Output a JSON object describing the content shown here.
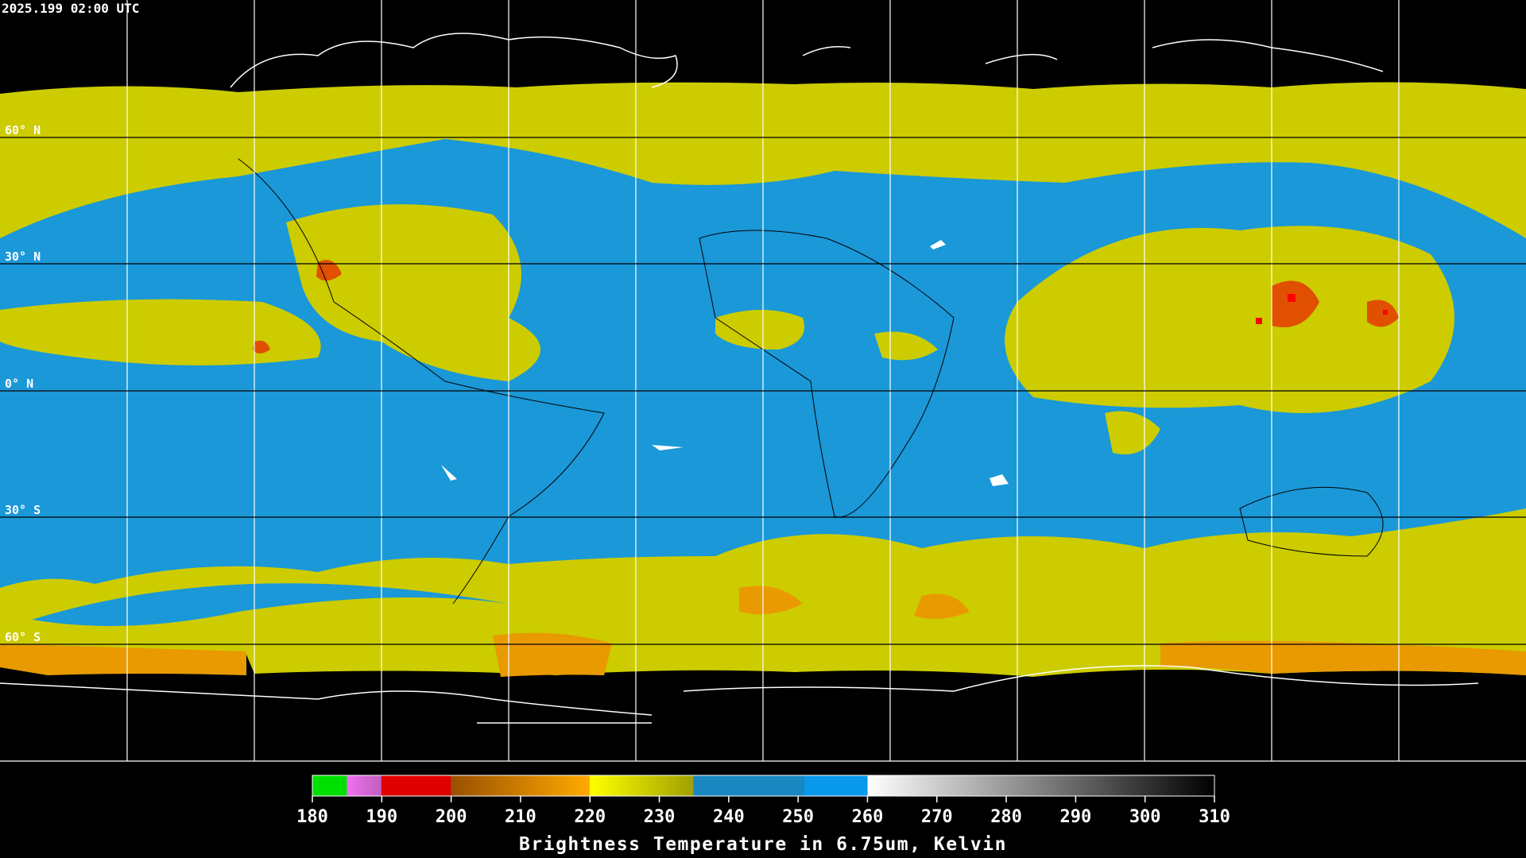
{
  "header": {
    "timestamp": "2025.199 02:00 UTC"
  },
  "map": {
    "latitude_labels": [
      "60° N",
      "30° N",
      "0° N",
      "30° S",
      "60° S"
    ]
  },
  "colorbar": {
    "range": [
      180,
      310
    ],
    "ticks": [
      180,
      190,
      200,
      210,
      220,
      230,
      240,
      250,
      260,
      270,
      280,
      290,
      300,
      310
    ],
    "title": "Brightness Temperature in 6.75um, Kelvin"
  }
}
